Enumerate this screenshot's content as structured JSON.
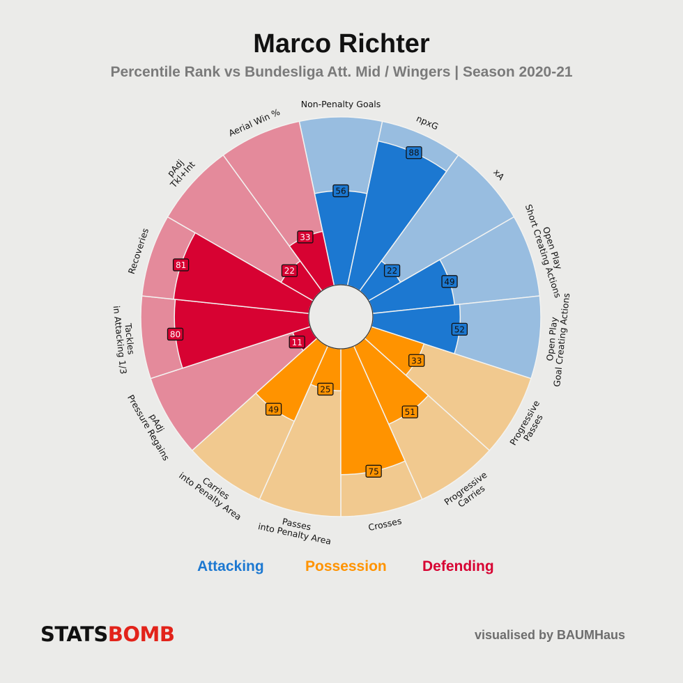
{
  "header": {
    "title": "Marco Richter",
    "subtitle": "Percentile Rank vs Bundesliga Att. Mid / Wingers  |  Season 2020-21"
  },
  "chart_data": {
    "type": "radar",
    "categories": [
      "Non-Penalty Goals",
      "npxG",
      "xA",
      "Open Play\nShort Creating Actions",
      "Open Play\nGoal Creating Actions",
      "Progressive\nPasses",
      "Progressive\nCarries",
      "Crosses",
      "Passes\ninto Penalty Area",
      "Carries\ninto Penalty Area",
      "pAdj\nPressure Regains",
      "Tackles\nin Attacking 1/3",
      "Recoveries",
      "pAdj\nTkl+Int",
      "Aerial Win %"
    ],
    "values": [
      56,
      88,
      22,
      49,
      52,
      33,
      51,
      75,
      25,
      49,
      11,
      80,
      81,
      22,
      33
    ],
    "groups": [
      "Attacking",
      "Attacking",
      "Attacking",
      "Attacking",
      "Attacking",
      "Possession",
      "Possession",
      "Possession",
      "Possession",
      "Possession",
      "Defending",
      "Defending",
      "Defending",
      "Defending",
      "Defending"
    ],
    "range": [
      0,
      100
    ],
    "colors": {
      "Attacking": {
        "fill": "#1c78d1",
        "light": "#98bde0"
      },
      "Possession": {
        "fill": "#ff9300",
        "light": "#f1c98f"
      },
      "Defending": {
        "fill": "#d70232",
        "light": "#e48a9b"
      }
    }
  },
  "legend": {
    "attacking": "Attacking",
    "possession": "Possession",
    "defending": "Defending",
    "attacking_color": "#1c78d1",
    "possession_color": "#ff9300",
    "defending_color": "#d70232"
  },
  "footer": {
    "logo_stats": "STATS",
    "logo_bomb": "BOMB",
    "credit": "visualised by BAUMHaus"
  }
}
